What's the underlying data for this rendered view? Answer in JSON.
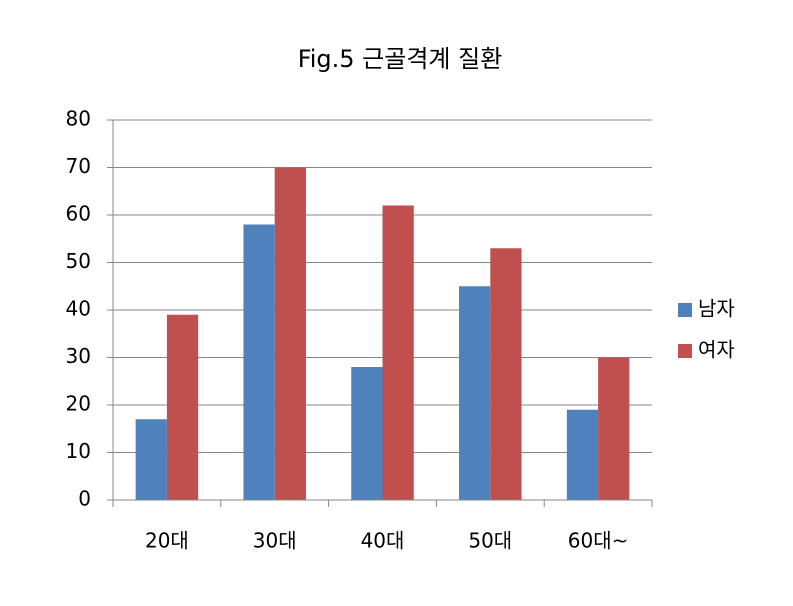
{
  "chart_data": {
    "type": "bar",
    "title": "Fig.5 근골격계 질환",
    "categories": [
      "20대",
      "30대",
      "40대",
      "50대",
      "60대~"
    ],
    "series": [
      {
        "name": "남자",
        "color": "#4f81bd",
        "values": [
          17,
          58,
          28,
          45,
          19
        ]
      },
      {
        "name": "여자",
        "color": "#c0504d",
        "values": [
          39,
          70,
          62,
          53,
          30
        ]
      }
    ],
    "ylim": [
      0,
      80
    ],
    "yticks": [
      0,
      10,
      20,
      30,
      40,
      50,
      60,
      70,
      80
    ],
    "grid": true,
    "legend": "right"
  }
}
